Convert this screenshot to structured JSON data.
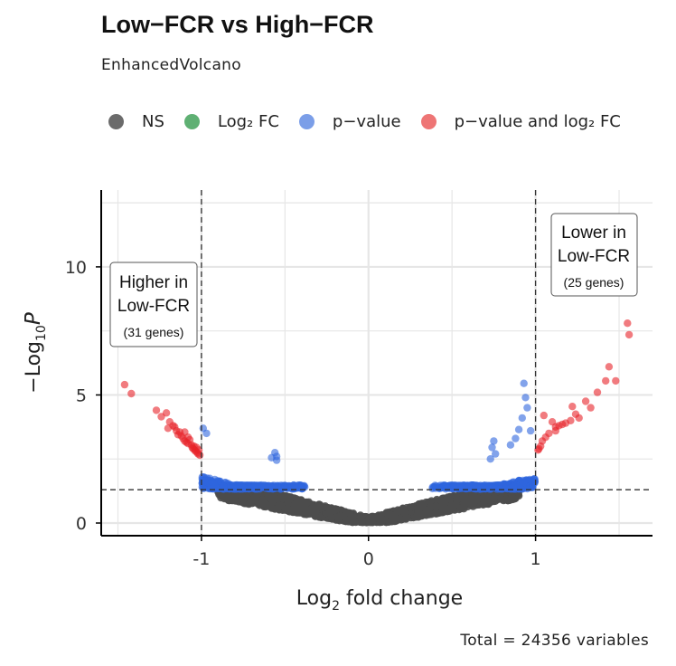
{
  "title": "Low−FCR vs High−FCR",
  "subtitle": "EnhancedVolcano",
  "caption": "Total = 24356 variables",
  "legend": [
    {
      "label": "NS",
      "color": "#6b6b6b"
    },
    {
      "label": "Log₂ FC",
      "color": "#5fb073"
    },
    {
      "label": "p−value",
      "color": "#7b9ee8"
    },
    {
      "label": "p−value and log₂ FC",
      "color": "#ee7575"
    }
  ],
  "annotations": {
    "left": {
      "line1": "Higher in",
      "line2": "Low-FCR",
      "line3": "(31 genes)"
    },
    "right": {
      "line1": "Lower in",
      "line2": "Low-FCR",
      "line3": "(25 genes)"
    }
  },
  "chart_data": {
    "type": "scatter",
    "title": "Low−FCR vs High−FCR",
    "xlabel_main": "Log",
    "xlabel_sub": "2",
    "xlabel_rest": " fold change",
    "ylabel_prefix": "−Log",
    "ylabel_sub": "10",
    "ylabel_var": "P",
    "xlim": [
      -1.6,
      1.7
    ],
    "ylim": [
      0,
      13
    ],
    "x_ticks": [
      -1,
      0,
      1
    ],
    "x_tick_labels": [
      "-1",
      "0",
      "1"
    ],
    "y_ticks": [
      0,
      5,
      10
    ],
    "y_tick_labels": [
      "0",
      "5",
      "10"
    ],
    "fc_cutoff": 1,
    "p_cutoff_neglog10": 1.3,
    "ns_color": "#4d4d4d",
    "pvalue_color": "#2f66de",
    "both_color": "#e8232a",
    "both_points_left": [
      [
        -1.46,
        5.4
      ],
      [
        -1.42,
        5.05
      ],
      [
        -1.27,
        4.4
      ],
      [
        -1.24,
        4.15
      ],
      [
        -1.21,
        4.3
      ],
      [
        -1.19,
        3.95
      ],
      [
        -1.17,
        3.8
      ],
      [
        -1.15,
        3.6
      ],
      [
        -1.13,
        3.55
      ],
      [
        -1.12,
        3.4
      ],
      [
        -1.11,
        3.3
      ],
      [
        -1.1,
        3.2
      ],
      [
        -1.09,
        3.15
      ],
      [
        -1.08,
        3.1
      ],
      [
        -1.07,
        3.25
      ],
      [
        -1.06,
        3.05
      ],
      [
        -1.055,
        2.95
      ],
      [
        -1.05,
        2.9
      ],
      [
        -1.045,
        3.0
      ],
      [
        -1.04,
        2.85
      ],
      [
        -1.035,
        2.8
      ],
      [
        -1.03,
        2.95
      ],
      [
        -1.025,
        2.75
      ],
      [
        -1.02,
        2.7
      ],
      [
        -1.015,
        2.85
      ],
      [
        -1.01,
        2.65
      ],
      [
        -1.2,
        3.7
      ],
      [
        -1.16,
        3.75
      ],
      [
        -1.14,
        3.45
      ],
      [
        -1.1,
        3.55
      ],
      [
        -1.08,
        3.35
      ]
    ],
    "both_points_right": [
      [
        1.55,
        7.8
      ],
      [
        1.56,
        7.35
      ],
      [
        1.44,
        6.1
      ],
      [
        1.42,
        5.55
      ],
      [
        1.48,
        5.55
      ],
      [
        1.37,
        5.1
      ],
      [
        1.3,
        4.75
      ],
      [
        1.33,
        4.5
      ],
      [
        1.22,
        4.55
      ],
      [
        1.24,
        4.25
      ],
      [
        1.21,
        4.0
      ],
      [
        1.18,
        3.9
      ],
      [
        1.16,
        3.85
      ],
      [
        1.14,
        3.8
      ],
      [
        1.12,
        3.75
      ],
      [
        1.1,
        3.95
      ],
      [
        1.08,
        3.5
      ],
      [
        1.06,
        3.35
      ],
      [
        1.05,
        4.2
      ],
      [
        1.04,
        3.2
      ],
      [
        1.03,
        3.0
      ],
      [
        1.02,
        2.9
      ],
      [
        1.015,
        2.85
      ],
      [
        1.12,
        3.6
      ],
      [
        1.26,
        4.1
      ]
    ],
    "blue_outliers": [
      [
        0.93,
        5.45
      ],
      [
        0.94,
        4.9
      ],
      [
        0.95,
        4.5
      ],
      [
        0.92,
        4.1
      ],
      [
        0.9,
        3.65
      ],
      [
        0.97,
        3.6
      ],
      [
        0.88,
        3.3
      ],
      [
        0.85,
        3.05
      ],
      [
        0.75,
        3.2
      ],
      [
        0.74,
        2.95
      ],
      [
        0.76,
        2.7
      ],
      [
        0.73,
        2.5
      ],
      [
        -0.56,
        2.75
      ],
      [
        -0.55,
        2.6
      ],
      [
        -0.55,
        2.45
      ],
      [
        -0.58,
        2.55
      ],
      [
        -0.99,
        3.7
      ],
      [
        -0.97,
        3.5
      ]
    ],
    "generated_points": {
      "ns_per_side": 900,
      "blue_per_side": 420,
      "seed": 7
    }
  }
}
